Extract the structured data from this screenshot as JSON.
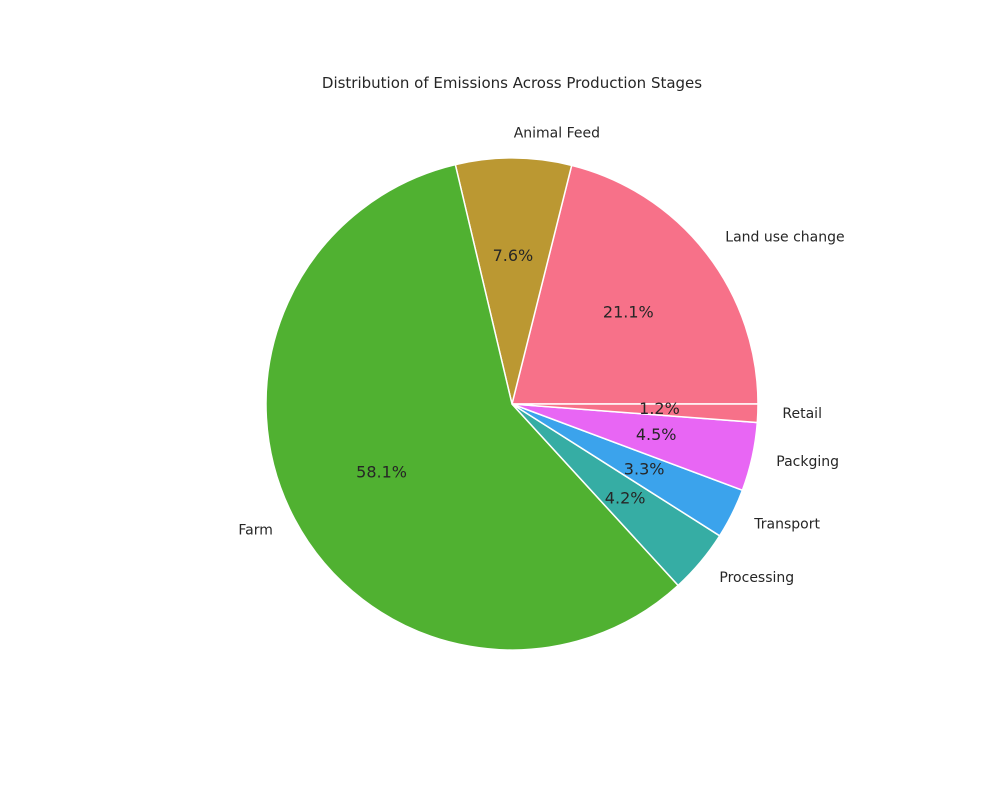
{
  "chart_data": {
    "type": "pie",
    "title": "Distribution of Emissions Across Production Stages",
    "start_angle_deg": 0,
    "direction": "counterclockwise",
    "slices": [
      {
        "label": "Land use change",
        "value": 21.1,
        "pct_label": "21.1%",
        "color": "#f77189"
      },
      {
        "label": "Animal Feed",
        "value": 7.6,
        "pct_label": "7.6%",
        "color": "#bb9832"
      },
      {
        "label": "Farm",
        "value": 58.1,
        "pct_label": "58.1%",
        "color": "#50b131"
      },
      {
        "label": "Processing",
        "value": 4.2,
        "pct_label": "4.2%",
        "color": "#36ada4"
      },
      {
        "label": "Transport",
        "value": 3.3,
        "pct_label": "3.3%",
        "color": "#3ba3ec"
      },
      {
        "label": "Packging",
        "value": 4.5,
        "pct_label": "4.5%",
        "color": "#e866f4"
      },
      {
        "label": "Retail",
        "value": 1.2,
        "pct_label": "1.2%",
        "color": "#f77189"
      }
    ]
  }
}
